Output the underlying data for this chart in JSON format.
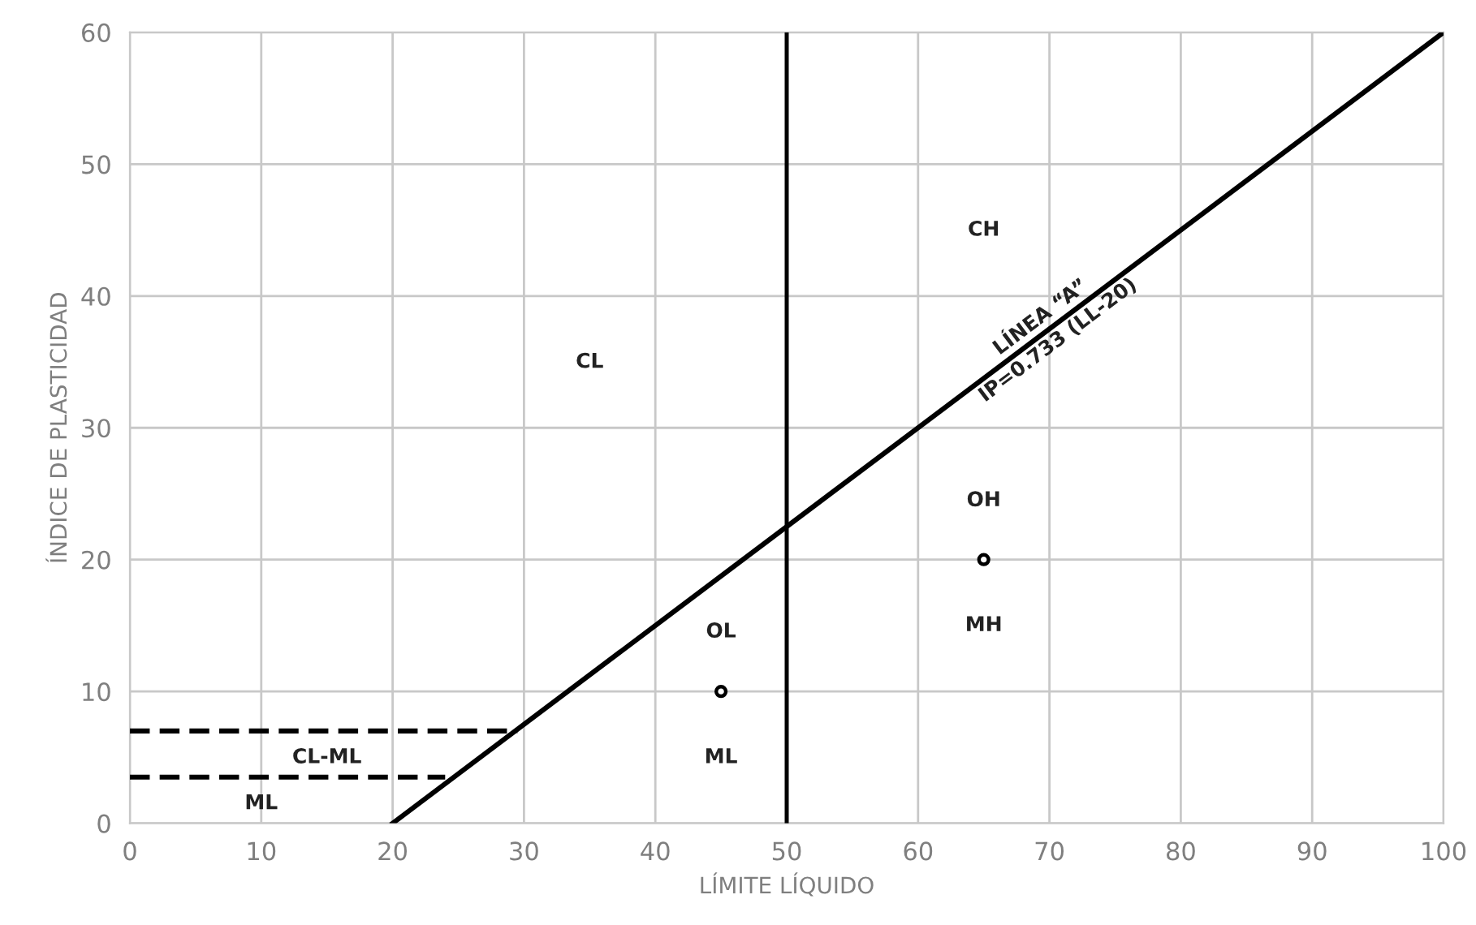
{
  "chart_data": {
    "type": "line",
    "xlabel": "LÍMITE LÍQUIDO",
    "ylabel": "ÍNDICE DE PLASTICIDAD",
    "xlim": [
      0,
      100
    ],
    "ylim": [
      0,
      60
    ],
    "xticks": [
      0,
      10,
      20,
      30,
      40,
      50,
      60,
      70,
      80,
      90,
      100
    ],
    "yticks": [
      0,
      10,
      20,
      30,
      40,
      50,
      60
    ],
    "grid": true,
    "legend": false,
    "series": [
      {
        "color": "#000000",
        "line_style": "solid",
        "marker": "none",
        "x": [
          20,
          100
        ],
        "values": [
          0,
          60
        ]
      },
      {
        "color": "#000000",
        "line_style": "dashed",
        "marker": "none",
        "x": [
          0,
          29.5
        ],
        "values": [
          7,
          7
        ]
      },
      {
        "color": "#000000",
        "line_style": "dashed",
        "marker": "none",
        "x": [
          0,
          24
        ],
        "values": [
          3.5,
          3.5
        ]
      },
      {
        "type": "scatter",
        "color": "#000000",
        "marker": "circle",
        "x": [
          45,
          65
        ],
        "values": [
          10,
          20
        ]
      }
    ],
    "ref_lines": [
      {
        "axis": "x",
        "value": 50,
        "color": "#000000",
        "line_style": "solid"
      }
    ],
    "annotations": [
      "CL",
      "CH",
      "OH",
      "MH",
      "OL",
      "ML",
      "CL-ML",
      "ML",
      {
        "text": "LÍNEA “A”\nIP=0.733 (LL-20)",
        "x": 70,
        "y": 37.5
      }
    ]
  }
}
